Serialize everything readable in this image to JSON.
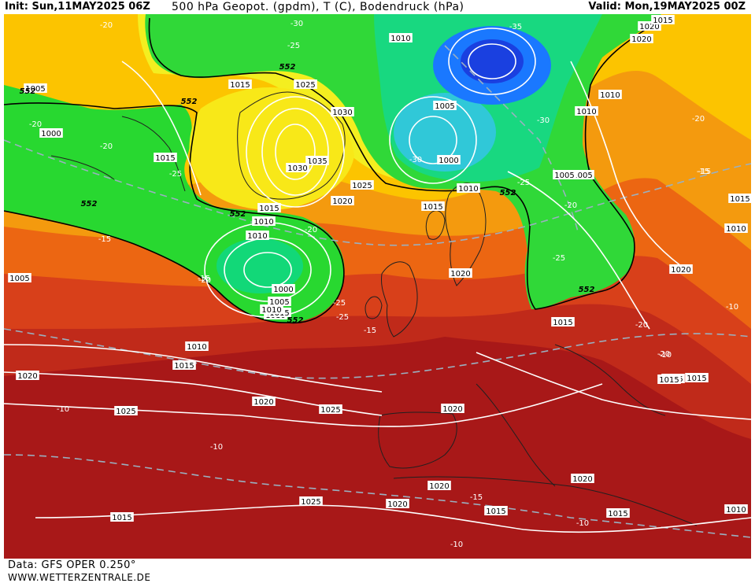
{
  "header": {
    "init": "Init: Sun,11MAY2025 06Z",
    "title": "500 hPa Geopot. (gpdm), T (C), Bodendruck (hPa)",
    "valid": "Valid: Mon,19MAY2025 00Z"
  },
  "footer": {
    "data_source": "Data: GFS OPER 0.250°",
    "website": "WWW.WETTERZENTRALE.DE"
  },
  "legend": {
    "ticks": [
      "476",
      "480",
      "484",
      "488",
      "492",
      "496",
      "500",
      "504",
      "508",
      "512",
      "516",
      "520",
      "524",
      "528",
      "532",
      "536",
      "540",
      "544",
      "548",
      "552",
      "556",
      "560",
      "564",
      "568",
      "572",
      "576",
      "580",
      "584",
      "588",
      "592",
      "596",
      "600"
    ],
    "colors": [
      "#4b0070",
      "#600088",
      "#7800a0",
      "#9000b8",
      "#a800d0",
      "#c000e8",
      "#8000ff",
      "#4400ff",
      "#0020ff",
      "#0060ff",
      "#0090ff",
      "#00b8ff",
      "#00d8f0",
      "#00e8c8",
      "#00e890",
      "#00e050",
      "#20e020",
      "#60e800",
      "#a8f000",
      "#f0f000",
      "#ffe000",
      "#ffc800",
      "#ffb000",
      "#ff9800",
      "#f88000",
      "#f06800",
      "#e85000",
      "#d84000",
      "#c83020",
      "#b82020",
      "#a01818",
      "#ff00ff"
    ]
  },
  "map": {
    "isobar_labels": [
      "1010",
      "1020",
      "1015",
      "1005",
      "1025",
      "1030",
      "1035",
      "1030",
      "1000",
      "1015",
      "1010",
      "1015",
      "1010",
      "1000",
      "1005",
      "1010",
      "1015",
      "1005",
      "1010",
      "1025",
      "1020",
      "1010",
      "1015",
      "1020",
      "1005",
      "1000",
      "1005",
      "1010",
      "1015",
      "1020",
      "1015",
      "1015",
      "1010",
      "1015",
      "1020",
      "1025",
      "1020",
      "1025",
      "1020",
      "1025",
      "1020",
      "1015",
      "1020",
      "1015",
      "1010",
      "1005",
      "1010",
      "1015",
      "1020",
      "1015",
      "1015",
      "1015",
      "1010",
      "1020"
    ],
    "temperature_labels": [
      "-20",
      "-30",
      "-25",
      "-35",
      "-30",
      "-20",
      "-20",
      "-25",
      "-20",
      "-25",
      "-20",
      "-25",
      "-15",
      "-20",
      "-15",
      "-25",
      "-30",
      "-20",
      "-20",
      "-15",
      "-20",
      "-15",
      "-15",
      "-10",
      "-10",
      "-10",
      "-15",
      "-10",
      "-10",
      "-10",
      "-25"
    ],
    "geopotential_labels": [
      "552",
      "552",
      "552",
      "552",
      "552",
      "552",
      "552",
      "552"
    ]
  }
}
